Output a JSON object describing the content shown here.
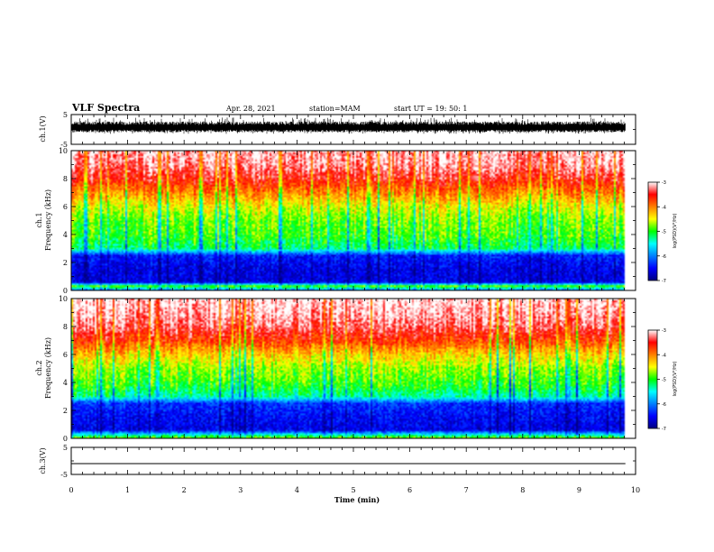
{
  "header": {
    "title": "VLF Spectra",
    "date": "Apr. 28, 2021",
    "station": "station=MAM",
    "start": "start  UT =   19: 50: 1"
  },
  "chart_data": [
    {
      "type": "line",
      "name": "waveform-ch1",
      "ylabel": "ch.1(V)",
      "xlim": [
        0,
        10
      ],
      "ylim": [
        -5,
        5
      ],
      "yticks": [
        "5",
        "-5"
      ],
      "signal": {
        "baseline": 0.5,
        "min": -1.5,
        "max": 4.0,
        "x_end": 9.82
      }
    },
    {
      "type": "heatmap",
      "name": "spectrogram-ch1",
      "ylabel_line1": "ch.1",
      "ylabel_line2": "Frequency (kHz)",
      "xlim": [
        0,
        10
      ],
      "ylim": [
        0,
        10
      ],
      "yticks": [
        "0",
        "2",
        "4",
        "6",
        "8",
        "10"
      ],
      "data_end_min": 9.82,
      "colorbar": {
        "min": -7,
        "max": -3,
        "ticks": [
          "-3",
          "-4",
          "-5",
          "-6",
          "-7"
        ],
        "label": "log(PSD)(V²/Hz)"
      },
      "profile_kHz_logpsd": [
        [
          0.0,
          -6.1
        ],
        [
          0.3,
          -4.8
        ],
        [
          0.6,
          -6.6
        ],
        [
          1.5,
          -6.6
        ],
        [
          2.5,
          -6.4
        ],
        [
          3.0,
          -5.2
        ],
        [
          4.0,
          -4.9
        ],
        [
          5.0,
          -4.8
        ],
        [
          6.0,
          -4.5
        ],
        [
          7.0,
          -4.0
        ],
        [
          8.0,
          -3.5
        ],
        [
          9.0,
          -3.2
        ],
        [
          10.0,
          -3.1
        ]
      ]
    },
    {
      "type": "heatmap",
      "name": "spectrogram-ch2",
      "ylabel_line1": "ch.2",
      "ylabel_line2": "Frequency (kHz)",
      "xlim": [
        0,
        10
      ],
      "ylim": [
        0,
        10
      ],
      "yticks": [
        "0",
        "2",
        "4",
        "6",
        "8",
        "10"
      ],
      "data_end_min": 9.82,
      "colorbar": {
        "min": -7,
        "max": -3,
        "ticks": [
          "-3",
          "-4",
          "-5",
          "-6",
          "-7"
        ],
        "label": "log(PSD)(V²/Hz)"
      },
      "profile_kHz_logpsd": [
        [
          0.0,
          -4.6
        ],
        [
          0.3,
          -5.6
        ],
        [
          0.6,
          -6.6
        ],
        [
          1.5,
          -6.5
        ],
        [
          2.5,
          -6.3
        ],
        [
          3.0,
          -5.3
        ],
        [
          4.0,
          -4.9
        ],
        [
          5.0,
          -4.7
        ],
        [
          6.0,
          -4.3
        ],
        [
          7.0,
          -3.7
        ],
        [
          8.0,
          -3.3
        ],
        [
          9.0,
          -3.1
        ],
        [
          10.0,
          -3.0
        ]
      ]
    },
    {
      "type": "line",
      "name": "waveform-ch3",
      "ylabel": "ch.3(V)",
      "xlim": [
        0,
        10
      ],
      "ylim": [
        -5,
        5
      ],
      "yticks": [
        "5",
        "-5"
      ],
      "signal": {
        "baseline": -1.0,
        "min": -1.0,
        "max": -1.0,
        "x_end": 9.82
      }
    }
  ],
  "xaxis": {
    "label": "Time (min)",
    "ticks": [
      "0",
      "1",
      "2",
      "3",
      "4",
      "5",
      "6",
      "7",
      "8",
      "9",
      "10"
    ]
  }
}
